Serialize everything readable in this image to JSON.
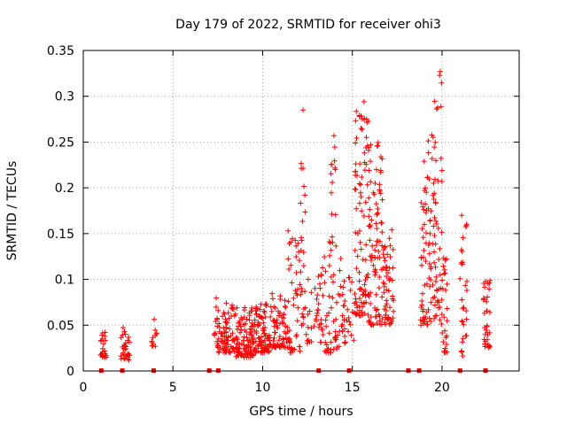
{
  "chart_data": {
    "type": "scatter",
    "title": "Day 179 of 2022, SRMTID for receiver ohi3",
    "xlabel": "GPS time / hours",
    "ylabel": "SRMTID / TECUs",
    "xlim": [
      0,
      24.3
    ],
    "ylim": [
      0,
      0.35
    ],
    "xticks": [
      0,
      5,
      10,
      15,
      20
    ],
    "yticks": [
      0,
      0.05,
      0.1,
      0.15,
      0.2,
      0.25,
      0.3,
      0.35
    ],
    "xtick_labels": [
      "0",
      "5",
      "10",
      "15",
      "20"
    ],
    "ytick_labels": [
      "0",
      "0.05",
      "0.1",
      "0.15",
      "0.2",
      "0.25",
      "0.3",
      "0.35"
    ],
    "grid": true,
    "marker": "+",
    "color": "#ff0000",
    "series_notes": "Point clusters read approximately from the figure",
    "clusters": [
      {
        "x": [
          0.95,
          1.3
        ],
        "y": [
          0.015,
          0.045
        ],
        "n": 22,
        "seed": 11
      },
      {
        "x": [
          2.1,
          2.6
        ],
        "y": [
          0.012,
          0.05
        ],
        "n": 30,
        "seed": 12
      },
      {
        "x": [
          3.8,
          4.1
        ],
        "y": [
          0.025,
          0.065
        ],
        "n": 12,
        "seed": 13
      },
      {
        "x": [
          7.3,
          8.5
        ],
        "y": [
          0.02,
          0.08
        ],
        "n": 90,
        "seed": 14
      },
      {
        "x": [
          8.5,
          9.5
        ],
        "y": [
          0.015,
          0.07
        ],
        "n": 100,
        "seed": 15
      },
      {
        "x": [
          9.5,
          10.5
        ],
        "y": [
          0.02,
          0.075
        ],
        "n": 90,
        "seed": 16
      },
      {
        "x": [
          10.5,
          11.4
        ],
        "y": [
          0.025,
          0.085
        ],
        "n": 70,
        "seed": 17
      },
      {
        "x": [
          11.4,
          12.1
        ],
        "y": [
          0.02,
          0.16
        ],
        "n": 45,
        "seed": 18
      },
      {
        "x": [
          12.1,
          12.4
        ],
        "y": [
          0.05,
          0.23
        ],
        "n": 25,
        "seed": 19
      },
      {
        "x": [
          12.4,
          13.3
        ],
        "y": [
          0.03,
          0.11
        ],
        "n": 35,
        "seed": 20
      },
      {
        "x": [
          13.3,
          14.4
        ],
        "y": [
          0.02,
          0.15
        ],
        "n": 55,
        "seed": 21
      },
      {
        "x": [
          13.8,
          14.1
        ],
        "y": [
          0.13,
          0.26
        ],
        "n": 15,
        "seed": 22
      },
      {
        "x": [
          14.4,
          15.1
        ],
        "y": [
          0.03,
          0.11
        ],
        "n": 30,
        "seed": 23
      },
      {
        "x": [
          15.1,
          15.9
        ],
        "y": [
          0.06,
          0.29
        ],
        "n": 95,
        "seed": 24
      },
      {
        "x": [
          15.9,
          16.7
        ],
        "y": [
          0.05,
          0.25
        ],
        "n": 90,
        "seed": 25
      },
      {
        "x": [
          16.7,
          17.3
        ],
        "y": [
          0.05,
          0.18
        ],
        "n": 55,
        "seed": 26
      },
      {
        "x": [
          18.8,
          19.5
        ],
        "y": [
          0.05,
          0.26
        ],
        "n": 70,
        "seed": 27
      },
      {
        "x": [
          19.5,
          20.0
        ],
        "y": [
          0.05,
          0.325
        ],
        "n": 55,
        "seed": 28
      },
      {
        "x": [
          20.0,
          20.3
        ],
        "y": [
          0.02,
          0.13
        ],
        "n": 25,
        "seed": 29
      },
      {
        "x": [
          21.0,
          21.4
        ],
        "y": [
          0.015,
          0.17
        ],
        "n": 30,
        "seed": 30
      },
      {
        "x": [
          22.3,
          22.7
        ],
        "y": [
          0.025,
          0.1
        ],
        "n": 35,
        "seed": 31
      }
    ],
    "outliers": [
      {
        "x": 12.25,
        "y": 0.285
      },
      {
        "x": 19.9,
        "y": 0.327
      },
      {
        "x": 15.65,
        "y": 0.294
      },
      {
        "x": 15.8,
        "y": 0.275
      }
    ],
    "baseline_markers": [
      0.98,
      2.15,
      3.9,
      7.0,
      7.5,
      13.1,
      14.8,
      18.1,
      18.7,
      20.98,
      22.4
    ]
  }
}
